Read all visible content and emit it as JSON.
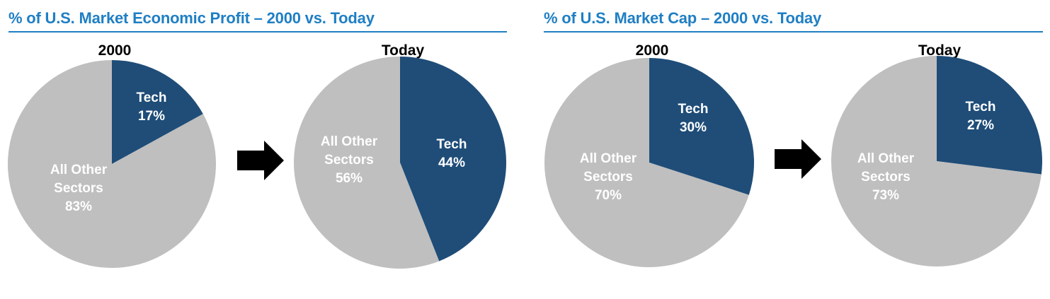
{
  "panels": [
    {
      "title": "% of U.S. Market Economic Profit – 2000 vs. Today"
    },
    {
      "title": "% of U.S. Market Cap – 2000 vs. Today"
    }
  ],
  "colors": {
    "title": "#1f7fc4",
    "tech": "#1f4d78",
    "other": "#bfbfbf",
    "arrow": "#000000"
  },
  "chart_data": [
    {
      "type": "pie",
      "title": "2000",
      "labels": [
        [
          "Tech",
          "17%"
        ],
        [
          "All Other",
          "Sectors",
          "83%"
        ]
      ],
      "series": [
        {
          "values": [
            17,
            83
          ]
        }
      ]
    },
    {
      "type": "pie",
      "title": "Today",
      "labels": [
        [
          "Tech",
          "44%"
        ],
        [
          "All Other",
          "Sectors",
          "56%"
        ]
      ],
      "series": [
        {
          "values": [
            44,
            56
          ]
        }
      ]
    },
    {
      "type": "pie",
      "title": "2000",
      "labels": [
        [
          "Tech",
          "30%"
        ],
        [
          "All Other",
          "Sectors",
          "70%"
        ]
      ],
      "series": [
        {
          "values": [
            30,
            70
          ]
        }
      ]
    },
    {
      "type": "pie",
      "title": "Today",
      "labels": [
        [
          "Tech",
          "27%"
        ],
        [
          "All Other",
          "Sectors",
          "73%"
        ]
      ],
      "series": [
        {
          "values": [
            27,
            73
          ]
        }
      ]
    }
  ]
}
